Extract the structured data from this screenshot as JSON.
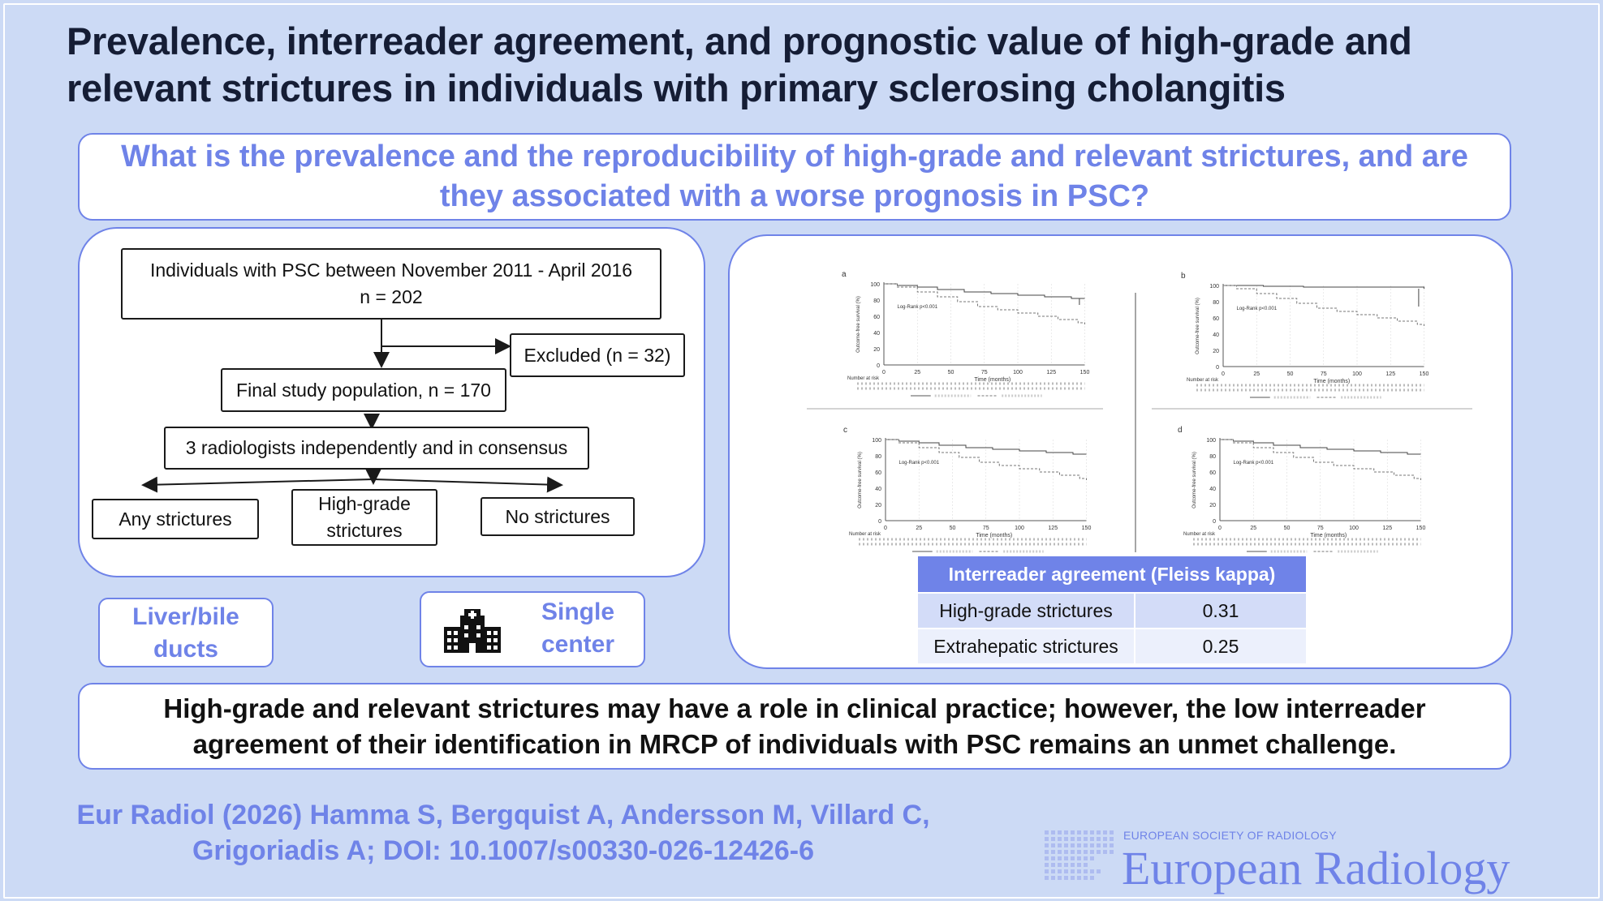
{
  "title": "Prevalence, interreader agreement, and prognostic value of high-grade and relevant strictures in individuals with primary sclerosing cholangitis",
  "question": "What is the prevalence and the reproducibility of high-grade and relevant strictures, and are they associated with a worse prognosis in PSC?",
  "flowchart": {
    "box1_line1": "Individuals with PSC between November 2011 - April 2016",
    "box1_line2": "n = 202",
    "excluded": "Excluded (n = 32)",
    "final": "Final study population, n = 170",
    "radiologists": "3 radiologists independently and in consensus",
    "any": "Any strictures",
    "high_line1": "High-grade",
    "high_line2": "strictures",
    "none": "No strictures"
  },
  "tags": {
    "organ_line1": "Liver/bile",
    "organ_line2": "ducts",
    "center_line1": "Single",
    "center_line2": "center",
    "center_icon": "hospital-icon"
  },
  "km_panels": [
    {
      "letter": "a",
      "logrank": "Log-Rank p<0.001"
    },
    {
      "letter": "b",
      "logrank": "Log-Rank p<0.001"
    },
    {
      "letter": "c",
      "logrank": "Log-Rank p<0.001"
    },
    {
      "letter": "d",
      "logrank": "Log-Rank p<0.001"
    }
  ],
  "km_common": {
    "y_ticks": [
      "0",
      "20",
      "40",
      "60",
      "80",
      "100"
    ],
    "x_ticks": [
      "0",
      "25",
      "50",
      "75",
      "100",
      "125",
      "150"
    ],
    "xlabel": "Time (months)",
    "ylabel": "Outcome-free survival (%)",
    "risk_label": "Number at risk"
  },
  "kappa_table": {
    "header": "Interreader agreement (Fleiss kappa)",
    "rows": [
      {
        "label": "High-grade strictures",
        "value": "0.31"
      },
      {
        "label": "Extrahepatic strictures",
        "value": "0.25"
      }
    ]
  },
  "conclusion": "High-grade and relevant strictures may have a role in clinical practice; however, the low interreader agreement of their identification in MRCP of individuals with PSC remains an unmet challenge.",
  "citation": "Eur Radiol (2026) Hamma S, Bergquist A, Andersson M, Villard C, Grigoriadis A; DOI: 10.1007/s00330-026-12426-6",
  "journal": {
    "society": "EUROPEAN SOCIETY OF RADIOLOGY",
    "name": "European Radiology"
  },
  "colors": {
    "accent": "#6f83e8",
    "background": "#ccdaf5",
    "title": "#151d35"
  }
}
